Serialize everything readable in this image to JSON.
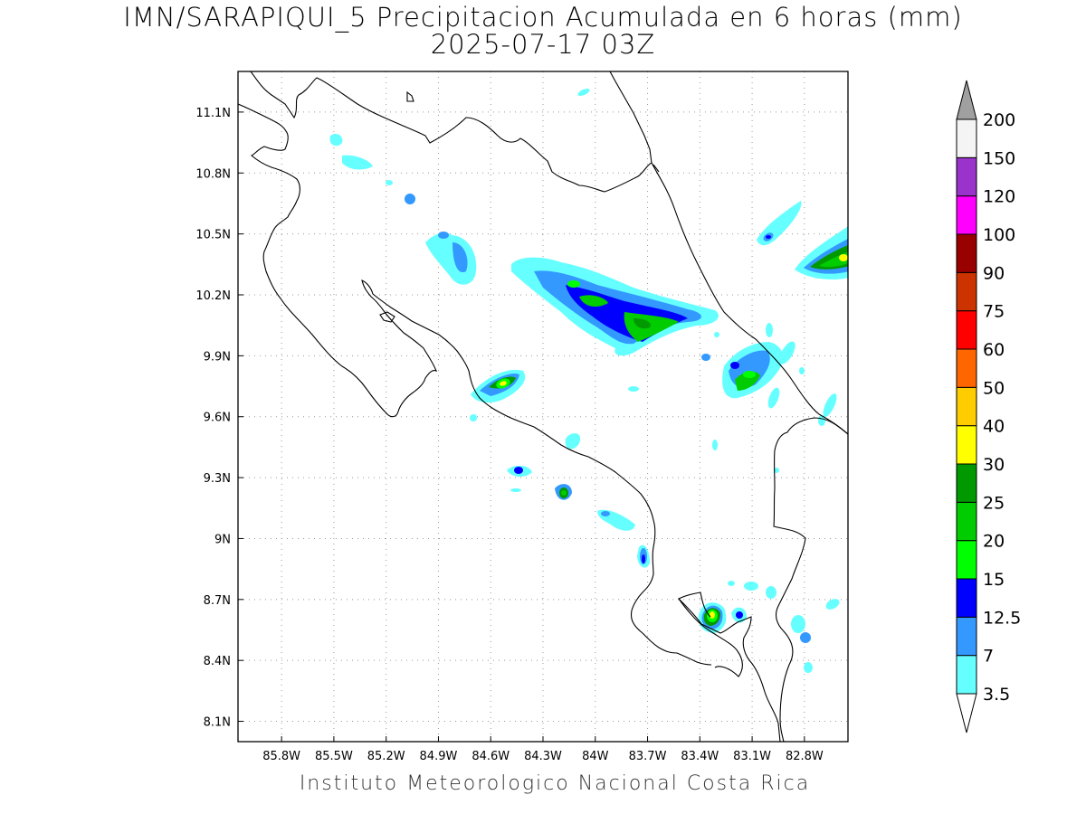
{
  "title_line1": "IMN/SARAPIQUI_5 Precipitacion Acumulada en 6 horas (mm)",
  "title_line2": "2025-07-17 03Z",
  "credit": "Instituto Meteorologico Nacional Costa Rica",
  "map": {
    "lon_range": [
      -86.05,
      -82.55
    ],
    "lat_range": [
      8.0,
      11.3
    ],
    "x_ticks": [
      {
        "value": -85.8,
        "label": "85.8W"
      },
      {
        "value": -85.5,
        "label": "85.5W"
      },
      {
        "value": -85.2,
        "label": "85.2W"
      },
      {
        "value": -84.9,
        "label": "84.9W"
      },
      {
        "value": -84.6,
        "label": "84.6W"
      },
      {
        "value": -84.3,
        "label": "84.3W"
      },
      {
        "value": -84.0,
        "label": "84W"
      },
      {
        "value": -83.7,
        "label": "83.7W"
      },
      {
        "value": -83.4,
        "label": "83.4W"
      },
      {
        "value": -83.1,
        "label": "83.1W"
      },
      {
        "value": -82.8,
        "label": "82.8W"
      }
    ],
    "y_ticks": [
      {
        "value": 8.1,
        "label": "8.1N"
      },
      {
        "value": 8.4,
        "label": "8.4N"
      },
      {
        "value": 8.7,
        "label": "8.7N"
      },
      {
        "value": 9.0,
        "label": "9N"
      },
      {
        "value": 9.3,
        "label": "9.3N"
      },
      {
        "value": 9.6,
        "label": "9.6N"
      },
      {
        "value": 9.9,
        "label": "9.9N"
      },
      {
        "value": 10.2,
        "label": "10.2N"
      },
      {
        "value": 10.5,
        "label": "10.5N"
      },
      {
        "value": 10.8,
        "label": "10.8N"
      },
      {
        "value": 11.1,
        "label": "11.1N"
      }
    ],
    "grid": "dotted",
    "coastline_color": "#000000"
  },
  "colorbar": {
    "labels": [
      "3.5",
      "7",
      "12.5",
      "15",
      "20",
      "25",
      "30",
      "40",
      "50",
      "60",
      "75",
      "90",
      "100",
      "120",
      "150",
      "200"
    ],
    "colors": [
      "#66ffff",
      "#3399ff",
      "#0000ff",
      "#00ff00",
      "#00cc00",
      "#009900",
      "#ffff00",
      "#ffcc00",
      "#ff6600",
      "#ff0000",
      "#cc3300",
      "#990000",
      "#ff00ff",
      "#9933cc",
      "#f4f4f4",
      "#a0a0a0"
    ],
    "under_color": "#ffffff",
    "over_color": "#a0a0a0"
  },
  "precip_cells": [
    {
      "lon": -84.05,
      "lat": 10.17,
      "intensity": "30"
    },
    {
      "lon": -83.6,
      "lat": 10.05,
      "intensity": "25"
    },
    {
      "lon": -84.45,
      "lat": 9.76,
      "intensity": "30"
    },
    {
      "lon": -83.28,
      "lat": 8.63,
      "intensity": "40"
    },
    {
      "lon": -83.1,
      "lat": 9.83,
      "intensity": "20"
    },
    {
      "lon": -82.62,
      "lat": 10.37,
      "intensity": "30"
    },
    {
      "lon": -84.12,
      "lat": 9.22,
      "intensity": "20"
    },
    {
      "lon": -84.63,
      "lat": 10.43,
      "intensity": "12.5"
    },
    {
      "lon": -83.75,
      "lat": 8.9,
      "intensity": "15"
    }
  ]
}
